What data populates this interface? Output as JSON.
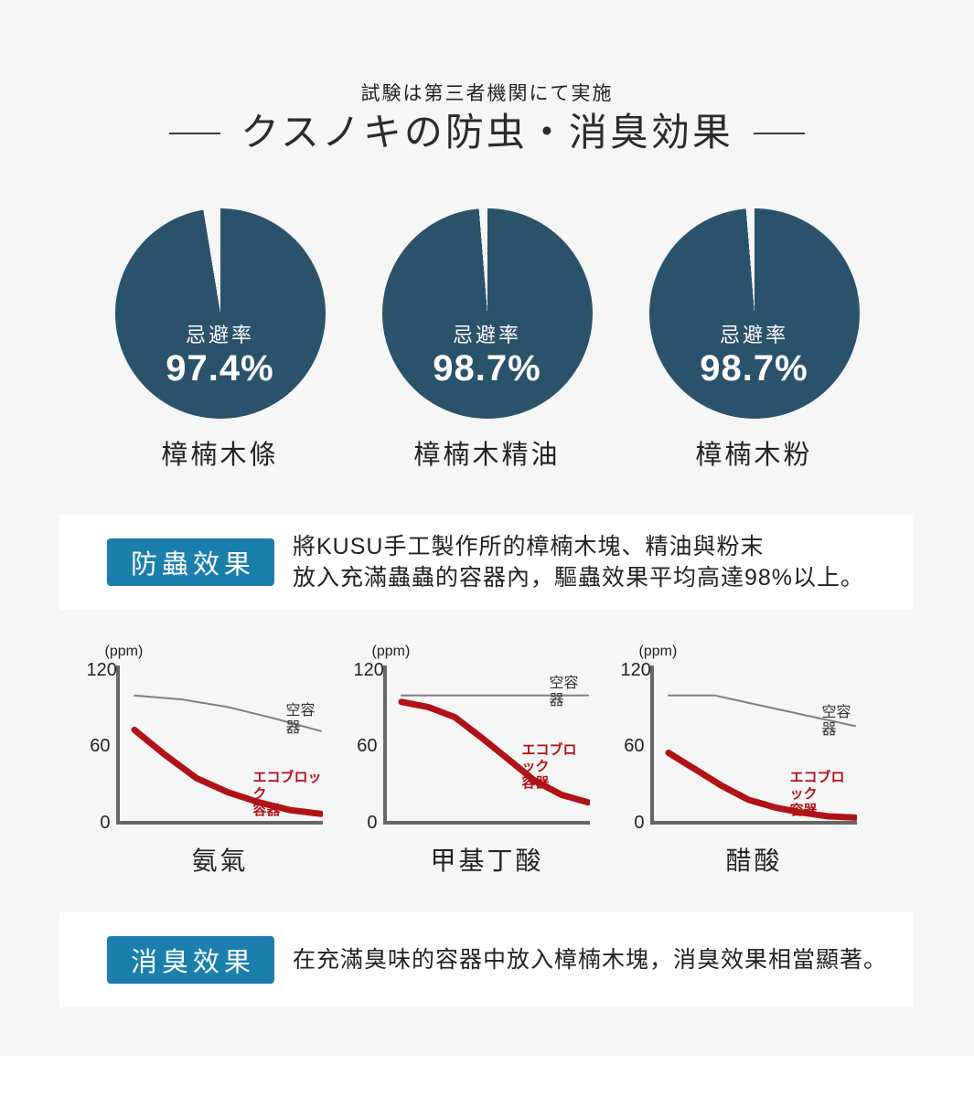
{
  "page": {
    "bg_color": "#f6f6f6",
    "subtitle": "試験は第三者機関にて実施",
    "title": "クスノキの防虫・消臭効果"
  },
  "pies": {
    "color": "#2b526b",
    "inner_label": "忌避率",
    "items": [
      {
        "percent": 97.4,
        "display": "97.4%",
        "label": "樟楠木條"
      },
      {
        "percent": 98.7,
        "display": "98.7%",
        "label": "樟楠木精油"
      },
      {
        "percent": 98.7,
        "display": "98.7%",
        "label": "樟楠木粉"
      }
    ]
  },
  "insect_box": {
    "badge": "防蟲效果",
    "badge_color": "#1b7fad",
    "line1": "將KUSU手工製作所的樟楠木塊、精油與粉末",
    "line2": "放入充滿蟲蟲的容器內，驅蟲效果平均高達98%以上。"
  },
  "deodor_box": {
    "badge": "消臭效果",
    "badge_color": "#1b7fad",
    "text": "在充滿臭味的容器中放入樟楠木塊，消臭效果相當顯著。"
  },
  "chart_data": [
    {
      "type": "line",
      "title": "氨氣",
      "ylabel": "(ppm)",
      "yticks": [
        "120",
        "60",
        "0"
      ],
      "ylim": [
        0,
        120
      ],
      "axis_color": "#666666",
      "grid": false,
      "legend_position": "inline-labels",
      "series": [
        {
          "name": "空容器",
          "label": "空容器",
          "color": "#7f7f7f",
          "width": 2,
          "label_color": "#333333",
          "label_pos": {
            "x": 186,
            "y": 40
          },
          "values": [
            100,
            97,
            91,
            82,
            72
          ]
        },
        {
          "name": "エコブロック容器",
          "label": "エコブロック\n容器",
          "color": "#b11217",
          "width": 7,
          "label_color": "#b11217",
          "label_pos": {
            "x": 150,
            "y": 114
          },
          "values": [
            73,
            53,
            35,
            24,
            16,
            10,
            7
          ]
        }
      ]
    },
    {
      "type": "line",
      "title": "甲基丁酸",
      "ylabel": "(ppm)",
      "yticks": [
        "120",
        "60",
        "0"
      ],
      "ylim": [
        0,
        120
      ],
      "axis_color": "#666666",
      "grid": false,
      "legend_position": "inline-labels",
      "series": [
        {
          "name": "空容器",
          "label": "空容器",
          "color": "#7f7f7f",
          "width": 2,
          "label_color": "#333333",
          "label_pos": {
            "x": 182,
            "y": 10
          },
          "values": [
            100,
            100
          ]
        },
        {
          "name": "エコブロック容器",
          "label": "エコブロック\n容器",
          "color": "#b11217",
          "width": 7,
          "label_color": "#b11217",
          "label_pos": {
            "x": 152,
            "y": 84
          },
          "values": [
            95,
            91,
            83,
            67,
            50,
            33,
            22,
            16
          ]
        }
      ]
    },
    {
      "type": "line",
      "title": "醋酸",
      "ylabel": "(ppm)",
      "yticks": [
        "120",
        "60",
        "0"
      ],
      "ylim": [
        0,
        120
      ],
      "axis_color": "#666666",
      "grid": false,
      "legend_position": "inline-labels",
      "series": [
        {
          "name": "空容器",
          "label": "空容器",
          "color": "#7f7f7f",
          "width": 2,
          "label_color": "#333333",
          "label_pos": {
            "x": 188,
            "y": 42
          },
          "values": [
            100,
            100,
            92,
            84,
            76
          ]
        },
        {
          "name": "エコブロック容器",
          "label": "エコブロック\n容器",
          "color": "#b11217",
          "width": 7,
          "label_color": "#b11217",
          "label_pos": {
            "x": 153,
            "y": 114
          },
          "values": [
            55,
            42,
            29,
            18,
            12,
            8,
            5,
            4
          ]
        }
      ]
    }
  ]
}
